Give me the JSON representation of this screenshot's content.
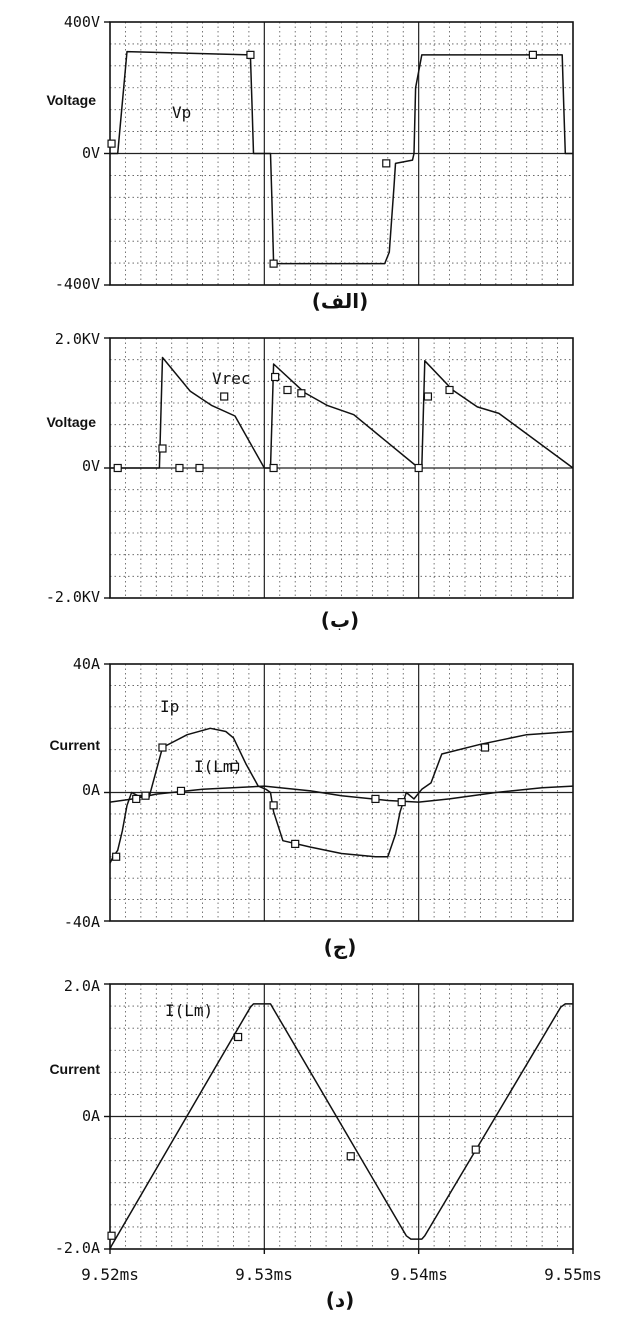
{
  "chart_data": [
    {
      "type": "line",
      "caption": "(الف)",
      "ylabel": "Voltage",
      "ylim": [
        -400,
        400
      ],
      "yticks": [
        "400V",
        "0V",
        "-400V"
      ],
      "xlim": [
        9.52,
        9.55
      ],
      "x_unit": "ms",
      "grid": true,
      "series": [
        {
          "name": "Vp",
          "x": [
            9.52,
            9.5205,
            9.5211,
            9.5291,
            9.5292,
            9.5293,
            9.5304,
            9.5305,
            9.5306,
            9.5378,
            9.5381,
            9.5384,
            9.5385,
            9.5396,
            9.5397,
            9.5398,
            9.5402,
            9.5493,
            9.5494,
            9.5495,
            9.55
          ],
          "y": [
            0,
            0,
            310,
            300,
            150,
            0,
            0,
            -150,
            -335,
            -335,
            -300,
            -100,
            -30,
            -20,
            0,
            200,
            300,
            300,
            150,
            0,
            0
          ]
        }
      ],
      "markers": {
        "x": [
          9.5201,
          9.5291,
          9.5306,
          9.5379,
          9.5474
        ],
        "y": [
          30,
          300,
          -335,
          -30,
          300
        ]
      }
    },
    {
      "type": "line",
      "caption": "(ب)",
      "ylabel": "Voltage",
      "ylim": [
        -2000,
        2000
      ],
      "yticks": [
        "2.0KV",
        "0V",
        "-2.0KV"
      ],
      "xlim": [
        9.52,
        9.55
      ],
      "x_unit": "ms",
      "grid": true,
      "series": [
        {
          "name": "Vrec",
          "x": [
            9.52,
            9.5232,
            9.5234,
            9.5252,
            9.5266,
            9.5281,
            9.53,
            9.5304,
            9.5306,
            9.5326,
            9.5341,
            9.5358,
            9.54,
            9.5402,
            9.5404,
            9.5422,
            9.5438,
            9.5452,
            9.55
          ],
          "y": [
            0,
            0,
            1700,
            1180,
            960,
            800,
            0,
            0,
            1600,
            1160,
            960,
            820,
            0,
            0,
            1650,
            1200,
            940,
            840,
            0
          ]
        }
      ],
      "markers": {
        "x": [
          9.5205,
          9.5234,
          9.5245,
          9.5258,
          9.5274,
          9.5306,
          9.5307,
          9.5315,
          9.5324,
          9.54,
          9.5406,
          9.542
        ],
        "y": [
          0,
          300,
          0,
          0,
          1100,
          0,
          1400,
          1200,
          1150,
          0,
          1100,
          1200
        ]
      }
    },
    {
      "type": "line",
      "caption": "(ج)",
      "ylabel": "Current",
      "ylim": [
        -40,
        40
      ],
      "yticks": [
        "40A",
        "0A",
        "-40A"
      ],
      "xlim": [
        9.52,
        9.55
      ],
      "x_unit": "ms",
      "grid": true,
      "series": [
        {
          "name": "Ip",
          "x": [
            9.52,
            9.5202,
            9.5205,
            9.5208,
            9.5211,
            9.5214,
            9.5218,
            9.5222,
            9.5225,
            9.5234,
            9.525,
            9.5265,
            9.5275,
            9.528,
            9.5288,
            9.5296,
            9.5301,
            9.5304,
            9.5306,
            9.5312,
            9.533,
            9.535,
            9.5372,
            9.538,
            9.5385,
            9.5388,
            9.5392,
            9.5397,
            9.5402,
            9.5408,
            9.5415,
            9.544,
            9.547,
            9.55
          ],
          "y": [
            -22,
            -20,
            -18,
            -12,
            -4,
            0,
            -1,
            -1,
            -2,
            14,
            18,
            20,
            19,
            17,
            9,
            2,
            1,
            0,
            -6,
            -15,
            -17,
            -19,
            -20,
            -20,
            -13,
            -6,
            0,
            -2,
            1,
            3,
            12,
            15,
            18,
            19
          ]
        },
        {
          "name": "I(Lm)",
          "x": [
            9.52,
            9.5215,
            9.523,
            9.526,
            9.53,
            9.533,
            9.535,
            9.538,
            9.54,
            9.542,
            9.545,
            9.548,
            9.55
          ],
          "y": [
            -3,
            -2,
            -0.5,
            1,
            2,
            0.5,
            -1,
            -2.5,
            -3,
            -2,
            0,
            1.5,
            2
          ]
        }
      ],
      "markers": {
        "x": [
          9.5204,
          9.5217,
          9.5223,
          9.5234,
          9.5246,
          9.5281,
          9.5306,
          9.532,
          9.5372,
          9.5389,
          9.5443
        ],
        "y": [
          -20,
          -2,
          -1,
          14,
          0.5,
          8,
          -4,
          -16,
          -2,
          -3,
          14
        ]
      }
    },
    {
      "type": "line",
      "caption": "(د)",
      "ylabel": "Current",
      "ylim": [
        -2.0,
        2.0
      ],
      "yticks": [
        "2.0A",
        "0A",
        "-2.0A"
      ],
      "xlim": [
        9.52,
        9.55
      ],
      "xticks": [
        "9.52ms",
        "9.53ms",
        "9.54ms",
        "9.55ms"
      ],
      "x_unit": "ms",
      "grid": true,
      "series": [
        {
          "name": "I(Lm)",
          "x": [
            9.52,
            9.5201,
            9.5291,
            9.5293,
            9.5304,
            9.5306,
            9.5392,
            9.5395,
            9.5402,
            9.5404,
            9.5492,
            9.5495,
            9.55
          ],
          "y": [
            -2.0,
            -1.95,
            1.65,
            1.7,
            1.7,
            1.62,
            -1.8,
            -1.85,
            -1.85,
            -1.8,
            1.65,
            1.7,
            1.7
          ]
        }
      ],
      "markers": {
        "x": [
          9.5201,
          9.5283,
          9.5356,
          9.5437
        ],
        "y": [
          -1.8,
          1.2,
          -0.6,
          -0.5
        ]
      }
    }
  ]
}
